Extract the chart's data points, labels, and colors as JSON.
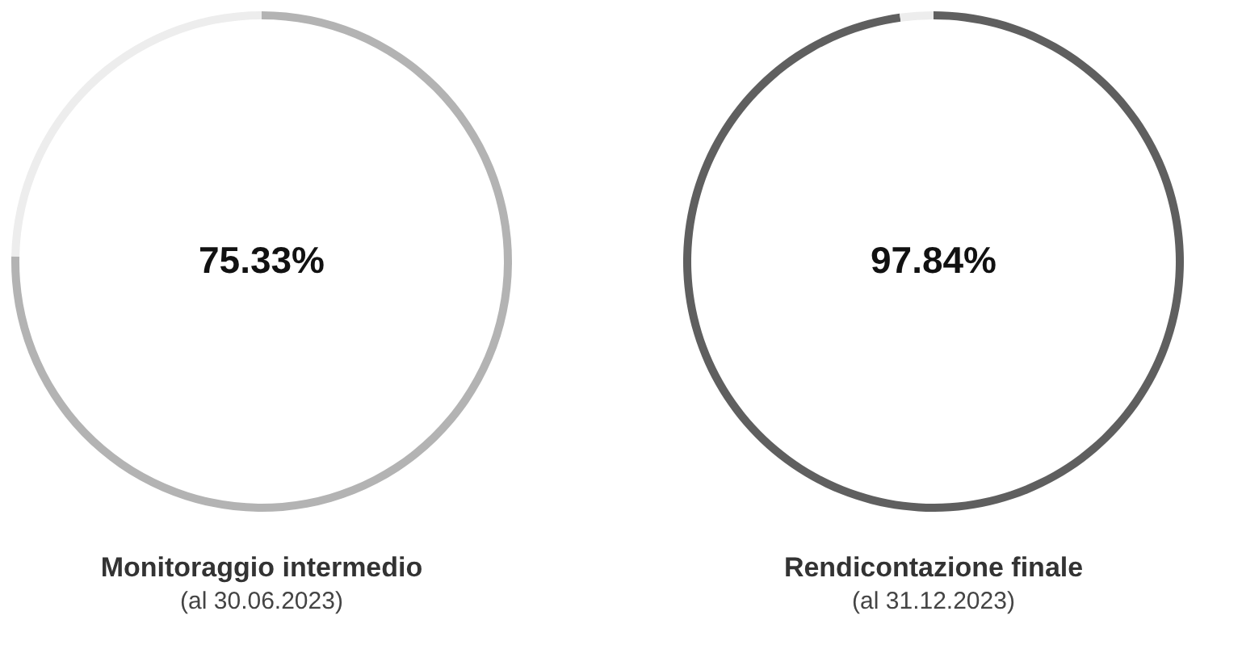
{
  "chart_data": [
    {
      "type": "donut",
      "title": "Monitoraggio intermedio",
      "subtitle": "(al 30.06.2023)",
      "categories": [
        null,
        null
      ],
      "values": [
        75.33,
        24.67
      ],
      "colors": [
        "#b3b3b3",
        "#ededed"
      ],
      "annotations": [
        "75.33%"
      ],
      "legend": false
    },
    {
      "type": "donut",
      "title": "Rendicontazione finale",
      "subtitle": "(al 31.12.2023)",
      "categories": [
        null,
        null
      ],
      "values": [
        97.84,
        2.16
      ],
      "colors": [
        "#5f5f5f",
        "#ededed"
      ],
      "annotations": [
        "97.84%"
      ],
      "legend": false
    }
  ]
}
